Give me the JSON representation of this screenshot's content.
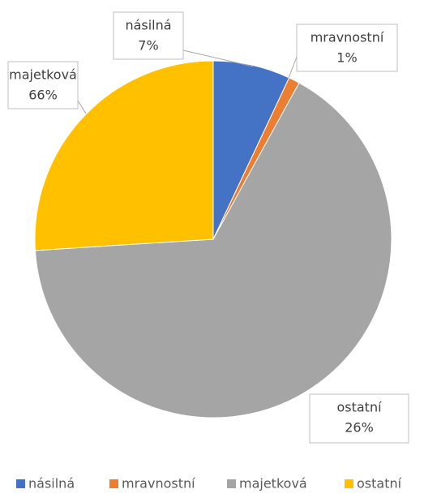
{
  "chart_data": {
    "type": "pie",
    "categories": [
      "násilná",
      "mravnostní",
      "majetková",
      "ostatní"
    ],
    "values": [
      7,
      1,
      66,
      26
    ],
    "value_labels": [
      "7%",
      "1%",
      "66%",
      "26%"
    ],
    "colors": [
      "#4472c4",
      "#ed7d31",
      "#a5a5a5",
      "#ffc000"
    ],
    "legend": "bottom"
  }
}
